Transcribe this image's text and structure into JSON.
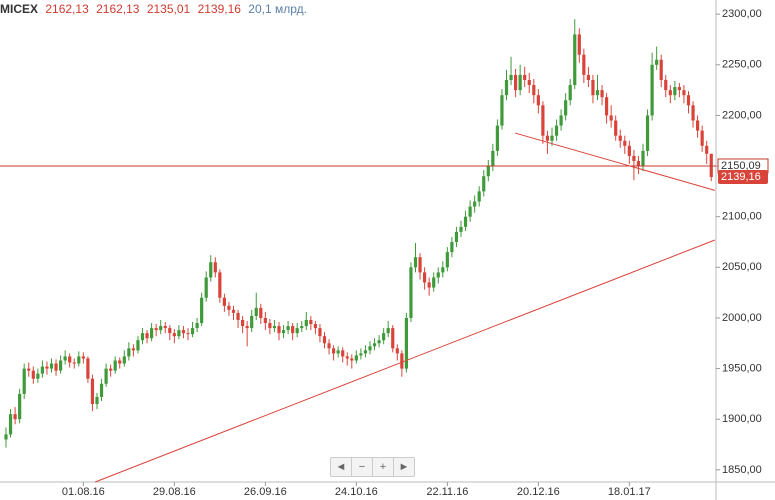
{
  "header": {
    "symbol": "MICEX",
    "open": "2162,13",
    "high": "2162,13",
    "low": "2135,01",
    "close": "2139,16",
    "volume": "20,1 млрд."
  },
  "controls": [
    "◄",
    "−",
    "+",
    "►"
  ],
  "chart_data": {
    "type": "candlestick",
    "up_color": "#3f9a3a",
    "down_color": "#d9443a",
    "grid": false,
    "ylim": [
      1838,
      2314
    ],
    "yticks": [
      {
        "value": 1850,
        "label": "1850,00"
      },
      {
        "value": 1900,
        "label": "1900,00"
      },
      {
        "value": 1950,
        "label": "1950,00"
      },
      {
        "value": 2000,
        "label": "2000,00"
      },
      {
        "value": 2050,
        "label": "2050,00"
      },
      {
        "value": 2100,
        "label": "2100,00"
      },
      {
        "value": 2150,
        "label": "2150,00"
      },
      {
        "value": 2200,
        "label": "2200,00"
      },
      {
        "value": 2250,
        "label": "2250,00"
      },
      {
        "value": 2300,
        "label": "2300,00"
      }
    ],
    "xticks": [
      {
        "value": 17,
        "label": "01.08.16"
      },
      {
        "value": 37,
        "label": "29.08.16"
      },
      {
        "value": 57,
        "label": "26.09.16"
      },
      {
        "value": 77,
        "label": "24.10.16"
      },
      {
        "value": 97,
        "label": "22.11.16"
      },
      {
        "value": 117,
        "label": "20.12.16"
      },
      {
        "value": 137,
        "label": "18.01.17"
      }
    ],
    "level": {
      "value": 2150.09,
      "label": "2150,09",
      "color": "#c0392b"
    },
    "last_price": {
      "value": 2139.16,
      "label": "2139,16",
      "color": "#d9443a"
    },
    "trend_lines": [
      {
        "x": [
          19.6,
          155.8
        ],
        "y": [
          1838,
          2077
        ],
        "color": "#d9443a"
      },
      {
        "x": [
          111.9,
          155.8
        ],
        "y": [
          2182.6,
          2126
        ],
        "color": "#d9443a"
      }
    ],
    "candles": [
      [
        1880,
        1892,
        1872,
        1885
      ],
      [
        1885,
        1910,
        1882,
        1905
      ],
      [
        1905,
        1912,
        1895,
        1900
      ],
      [
        1900,
        1930,
        1896,
        1925
      ],
      [
        1925,
        1955,
        1920,
        1950
      ],
      [
        1950,
        1956,
        1942,
        1948
      ],
      [
        1948,
        1952,
        1935,
        1940
      ],
      [
        1940,
        1950,
        1936,
        1945
      ],
      [
        1945,
        1958,
        1941,
        1952
      ],
      [
        1952,
        1957,
        1944,
        1950
      ],
      [
        1950,
        1960,
        1946,
        1955
      ],
      [
        1955,
        1959,
        1943,
        1948
      ],
      [
        1948,
        1963,
        1945,
        1958
      ],
      [
        1958,
        1968,
        1954,
        1962
      ],
      [
        1962,
        1965,
        1951,
        1956
      ],
      [
        1956,
        1960,
        1950,
        1955
      ],
      [
        1955,
        1967,
        1952,
        1962
      ],
      [
        1962,
        1966,
        1955,
        1960
      ],
      [
        1960,
        1962,
        1936,
        1940
      ],
      [
        1940,
        1944,
        1908,
        1915
      ],
      [
        1915,
        1926,
        1910,
        1922
      ],
      [
        1922,
        1940,
        1918,
        1935
      ],
      [
        1935,
        1955,
        1932,
        1950
      ],
      [
        1950,
        1954,
        1942,
        1948
      ],
      [
        1948,
        1962,
        1945,
        1958
      ],
      [
        1958,
        1961,
        1950,
        1955
      ],
      [
        1955,
        1968,
        1952,
        1962
      ],
      [
        1962,
        1976,
        1958,
        1970
      ],
      [
        1970,
        1974,
        1962,
        1968
      ],
      [
        1968,
        1982,
        1965,
        1978
      ],
      [
        1978,
        1990,
        1974,
        1985
      ],
      [
        1985,
        1988,
        1975,
        1980
      ],
      [
        1980,
        1995,
        1977,
        1990
      ],
      [
        1990,
        1994,
        1982,
        1988
      ],
      [
        1988,
        1998,
        1984,
        1992
      ],
      [
        1992,
        1996,
        1985,
        1990
      ],
      [
        1990,
        1993,
        1978,
        1985
      ],
      [
        1985,
        1989,
        1975,
        1982
      ],
      [
        1982,
        1993,
        1979,
        1988
      ],
      [
        1988,
        1992,
        1980,
        1985
      ],
      [
        1985,
        1990,
        1978,
        1984
      ],
      [
        1984,
        1996,
        1981,
        1990
      ],
      [
        1990,
        2000,
        1986,
        1995
      ],
      [
        1995,
        2025,
        1992,
        2020
      ],
      [
        2020,
        2046,
        2016,
        2040
      ],
      [
        2040,
        2062,
        2036,
        2055
      ],
      [
        2055,
        2060,
        2040,
        2045
      ],
      [
        2045,
        2048,
        2015,
        2020
      ],
      [
        2020,
        2024,
        2006,
        2012
      ],
      [
        2012,
        2016,
        2002,
        2008
      ],
      [
        2008,
        2012,
        1998,
        2005
      ],
      [
        2005,
        2008,
        1990,
        1998
      ],
      [
        1998,
        2002,
        1985,
        1992
      ],
      [
        1992,
        1997,
        1972,
        1990
      ],
      [
        1990,
        2008,
        1986,
        2002
      ],
      [
        2002,
        2025,
        1998,
        2010
      ],
      [
        2010,
        2014,
        1994,
        2000
      ],
      [
        2000,
        2006,
        1988,
        1995
      ],
      [
        1995,
        1999,
        1984,
        1990
      ],
      [
        1990,
        1998,
        1986,
        1992
      ],
      [
        1992,
        1996,
        1978,
        1985
      ],
      [
        1985,
        1993,
        1980,
        1988
      ],
      [
        1988,
        1997,
        1984,
        1992
      ],
      [
        1992,
        1995,
        1978,
        1985
      ],
      [
        1985,
        1995,
        1981,
        1990
      ],
      [
        1990,
        1997,
        1986,
        1992
      ],
      [
        1992,
        2006,
        1988,
        1998
      ],
      [
        1998,
        2002,
        1988,
        1994
      ],
      [
        1994,
        1997,
        1984,
        1990
      ],
      [
        1990,
        1994,
        1976,
        1982
      ],
      [
        1982,
        1986,
        1970,
        1975
      ],
      [
        1975,
        1979,
        1964,
        1970
      ],
      [
        1970,
        1973,
        1958,
        1965
      ],
      [
        1965,
        1972,
        1961,
        1968
      ],
      [
        1968,
        1971,
        1956,
        1962
      ],
      [
        1962,
        1966,
        1953,
        1960
      ],
      [
        1960,
        1964,
        1950,
        1958
      ],
      [
        1958,
        1968,
        1955,
        1963
      ],
      [
        1963,
        1970,
        1959,
        1965
      ],
      [
        1965,
        1973,
        1961,
        1968
      ],
      [
        1968,
        1977,
        1964,
        1972
      ],
      [
        1972,
        1980,
        1968,
        1975
      ],
      [
        1975,
        1983,
        1971,
        1978
      ],
      [
        1978,
        1990,
        1974,
        1985
      ],
      [
        1985,
        1997,
        1981,
        1990
      ],
      [
        1990,
        1993,
        1966,
        1970
      ],
      [
        1970,
        1974,
        1958,
        1965
      ],
      [
        1965,
        1968,
        1942,
        1950
      ],
      [
        1950,
        2005,
        1946,
        2000
      ],
      [
        2000,
        2055,
        1996,
        2050
      ],
      [
        2050,
        2074,
        2045,
        2060
      ],
      [
        2060,
        2064,
        2038,
        2045
      ],
      [
        2045,
        2050,
        2028,
        2035
      ],
      [
        2035,
        2040,
        2022,
        2030
      ],
      [
        2030,
        2045,
        2026,
        2040
      ],
      [
        2040,
        2050,
        2034,
        2045
      ],
      [
        2045,
        2056,
        2040,
        2050
      ],
      [
        2050,
        2070,
        2046,
        2065
      ],
      [
        2065,
        2080,
        2060,
        2075
      ],
      [
        2075,
        2090,
        2070,
        2085
      ],
      [
        2085,
        2096,
        2080,
        2090
      ],
      [
        2090,
        2106,
        2086,
        2100
      ],
      [
        2100,
        2116,
        2095,
        2110
      ],
      [
        2110,
        2121,
        2104,
        2115
      ],
      [
        2115,
        2130,
        2110,
        2125
      ],
      [
        2125,
        2146,
        2120,
        2140
      ],
      [
        2140,
        2156,
        2135,
        2150
      ],
      [
        2150,
        2172,
        2145,
        2165
      ],
      [
        2165,
        2196,
        2160,
        2190
      ],
      [
        2190,
        2226,
        2186,
        2220
      ],
      [
        2220,
        2245,
        2215,
        2235
      ],
      [
        2235,
        2258,
        2230,
        2240
      ],
      [
        2240,
        2246,
        2218,
        2225
      ],
      [
        2225,
        2250,
        2220,
        2240
      ],
      [
        2240,
        2248,
        2228,
        2235
      ],
      [
        2235,
        2242,
        2222,
        2230
      ],
      [
        2230,
        2236,
        2212,
        2220
      ],
      [
        2220,
        2226,
        2202,
        2210
      ],
      [
        2210,
        2214,
        2172,
        2180
      ],
      [
        2180,
        2185,
        2162,
        2175
      ],
      [
        2175,
        2188,
        2170,
        2180
      ],
      [
        2180,
        2196,
        2175,
        2190
      ],
      [
        2190,
        2206,
        2185,
        2200
      ],
      [
        2200,
        2222,
        2195,
        2215
      ],
      [
        2215,
        2236,
        2210,
        2230
      ],
      [
        2230,
        2295,
        2226,
        2280
      ],
      [
        2280,
        2286,
        2252,
        2260
      ],
      [
        2260,
        2266,
        2232,
        2240
      ],
      [
        2240,
        2248,
        2228,
        2235
      ],
      [
        2235,
        2240,
        2212,
        2220
      ],
      [
        2220,
        2240,
        2215,
        2225
      ],
      [
        2225,
        2230,
        2210,
        2218
      ],
      [
        2218,
        2222,
        2192,
        2200
      ],
      [
        2200,
        2210,
        2188,
        2195
      ],
      [
        2195,
        2200,
        2175,
        2180
      ],
      [
        2180,
        2186,
        2168,
        2175
      ],
      [
        2175,
        2180,
        2162,
        2170
      ],
      [
        2170,
        2175,
        2152,
        2160
      ],
      [
        2160,
        2166,
        2136,
        2155
      ],
      [
        2155,
        2160,
        2142,
        2150
      ],
      [
        2150,
        2172,
        2145,
        2165
      ],
      [
        2165,
        2206,
        2160,
        2200
      ],
      [
        2200,
        2262,
        2195,
        2250
      ],
      [
        2250,
        2268,
        2245,
        2255
      ],
      [
        2255,
        2260,
        2228,
        2235
      ],
      [
        2235,
        2240,
        2218,
        2225
      ],
      [
        2225,
        2230,
        2212,
        2220
      ],
      [
        2220,
        2234,
        2215,
        2228
      ],
      [
        2228,
        2232,
        2218,
        2225
      ],
      [
        2225,
        2230,
        2212,
        2220
      ],
      [
        2220,
        2224,
        2202,
        2210
      ],
      [
        2210,
        2214,
        2188,
        2195
      ],
      [
        2195,
        2200,
        2178,
        2185
      ],
      [
        2185,
        2190,
        2164,
        2170
      ],
      [
        2170,
        2175,
        2152,
        2162.13
      ],
      [
        2162.13,
        2162.13,
        2135.01,
        2139.16
      ]
    ]
  }
}
